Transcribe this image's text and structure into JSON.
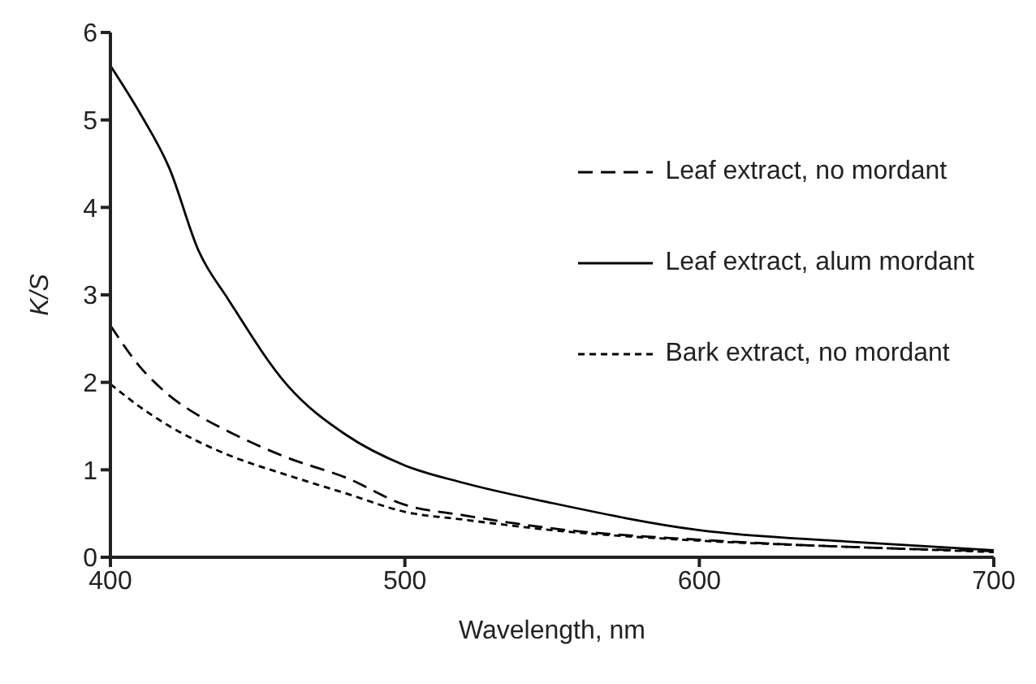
{
  "chart_data": {
    "type": "line",
    "xlabel": "Wavelength, nm",
    "ylabel": "K/S",
    "x": [
      400,
      410,
      420,
      430,
      440,
      460,
      480,
      500,
      520,
      550,
      600,
      650,
      700
    ],
    "series": [
      {
        "name": "Leaf extract, no mordant",
        "color": "#000000",
        "line_style": "dashed",
        "values": [
          2.65,
          2.18,
          1.85,
          1.62,
          1.44,
          1.14,
          0.91,
          0.6,
          0.48,
          0.33,
          0.2,
          0.12,
          0.07
        ]
      },
      {
        "name": "Leaf extract, alum mordant",
        "color": "#000000",
        "line_style": "solid",
        "values": [
          5.62,
          5.08,
          4.45,
          3.5,
          2.95,
          1.97,
          1.4,
          1.05,
          0.85,
          0.62,
          0.31,
          0.18,
          0.08
        ]
      },
      {
        "name": "Bark extract, no mordant",
        "color": "#000000",
        "line_style": "dotted",
        "values": [
          1.98,
          1.72,
          1.5,
          1.32,
          1.17,
          0.94,
          0.73,
          0.52,
          0.43,
          0.31,
          0.19,
          0.12,
          0.06
        ]
      }
    ],
    "xlim": [
      400,
      700
    ],
    "xticks": [
      400,
      500,
      600,
      700
    ],
    "ylim": [
      0,
      6
    ],
    "yticks": [
      0,
      1,
      2,
      3,
      4,
      5,
      6
    ],
    "grid": false,
    "legend": "right",
    "marker": "none"
  }
}
